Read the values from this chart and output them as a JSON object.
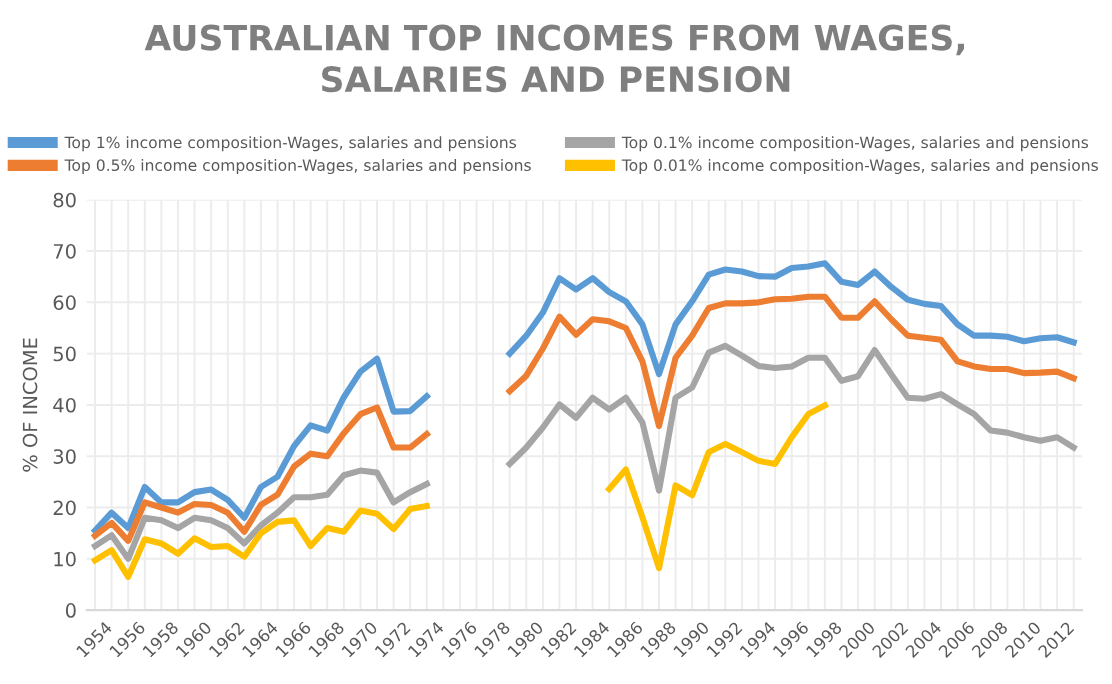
{
  "chart_data": {
    "type": "line",
    "title": "AUSTRALIAN TOP INCOMES FROM WAGES,\nSALARIES AND PENSION",
    "ylabel": "% OF INCOME",
    "categories": [
      "1954",
      null,
      "1956",
      null,
      "1958",
      null,
      "1960",
      null,
      "1962",
      null,
      "1964",
      null,
      "1966",
      null,
      "1968",
      null,
      "1970",
      null,
      "1972",
      null,
      "1974",
      null,
      "1976",
      null,
      "1978",
      null,
      "1980",
      null,
      "1982",
      null,
      "1984",
      null,
      "1986",
      null,
      "1988",
      null,
      "1990",
      null,
      "1992",
      null,
      "1994",
      null,
      "1996",
      null,
      "1998",
      null,
      "2000",
      null,
      "2002",
      null,
      "2004",
      null,
      "2006",
      null,
      "2008",
      null,
      "2010",
      null,
      "2012",
      null
    ],
    "series": [
      {
        "name": "Top 1% income composition-Wages, salaries and pensions",
        "color": "#5b9bd5",
        "values": [
          15.5,
          19,
          16,
          24,
          21,
          21,
          23,
          23.5,
          21.5,
          18,
          24,
          26,
          32,
          36,
          35,
          41.5,
          46.5,
          49,
          38.7,
          38.8,
          41.7,
          null,
          null,
          null,
          null,
          50,
          53.5,
          58,
          64.7,
          62.5,
          64.7,
          62,
          60.2,
          55.7,
          46,
          55.7,
          60.2,
          65.4,
          66.4,
          66,
          65.1,
          65,
          66.7,
          67,
          67.6,
          64,
          63.4,
          66,
          63,
          60.5,
          59.7,
          59.3,
          55.7,
          53.5,
          53.5,
          53.3,
          52.4,
          53,
          53.2,
          52.2
        ]
      },
      {
        "name": "Top 0.5% income composition-Wages, salaries and pensions",
        "color": "#ed7d31",
        "values": [
          14.5,
          17,
          13.5,
          21,
          20,
          19,
          20.7,
          20.5,
          19,
          15.3,
          20.5,
          22.5,
          28,
          30.5,
          30,
          34.5,
          38.2,
          39.5,
          31.7,
          31.7,
          34.3,
          null,
          null,
          null,
          null,
          42.7,
          45.7,
          51,
          57.2,
          53.7,
          56.7,
          56.3,
          55,
          48.5,
          35.9,
          49.2,
          53.5,
          58.9,
          59.8,
          59.8,
          60,
          60.6,
          60.7,
          61.1,
          61.1,
          57,
          57,
          60.2,
          56.7,
          53.5,
          53.1,
          52.7,
          48.5,
          47.5,
          47,
          47,
          46.2,
          46.3,
          46.5,
          45.2
        ]
      },
      {
        "name": "Top 0.1% income composition-Wages, salaries and pensions",
        "color": "#a5a5a5",
        "values": [
          12.5,
          14.6,
          10,
          18,
          17.5,
          16,
          18,
          17.5,
          16,
          13,
          16.5,
          19,
          22,
          22,
          22.5,
          26.3,
          27.2,
          26.8,
          21,
          23,
          24.6,
          null,
          null,
          null,
          null,
          28.5,
          31.7,
          35.6,
          40.1,
          37.5,
          41.4,
          39.1,
          41.4,
          36.6,
          23.3,
          41.4,
          43.4,
          50.2,
          51.5,
          49.6,
          47.6,
          47.2,
          47.5,
          49.2,
          49.2,
          44.7,
          45.6,
          50.7,
          46,
          41.4,
          41.2,
          42.1,
          40.1,
          38.2,
          35,
          34.6,
          33.7,
          33,
          33.7,
          31.7
        ]
      },
      {
        "name": "Top 0.01% income composition-Wages, salaries and pensions",
        "color": "#ffc000",
        "values": [
          9.7,
          11.7,
          6.5,
          13.8,
          13,
          11,
          14,
          12.3,
          12.5,
          10.4,
          15,
          17.2,
          17.5,
          12.5,
          16,
          15.3,
          19.4,
          18.8,
          15.8,
          19.7,
          20.3,
          null,
          null,
          null,
          null,
          null,
          null,
          null,
          null,
          null,
          null,
          23.6,
          27.4,
          18.1,
          8.2,
          24.3,
          22.4,
          30.8,
          32.4,
          30.8,
          29.1,
          28.5,
          33.7,
          38.2,
          39.9,
          null,
          null,
          null,
          null,
          null,
          null,
          null,
          null,
          null,
          null,
          null,
          null,
          null,
          null,
          null
        ]
      }
    ],
    "ylim": [
      0,
      80
    ],
    "yticks": [
      0,
      10,
      20,
      30,
      40,
      50,
      60,
      70,
      80
    ],
    "grid": true,
    "legend": "top",
    "marker": "none",
    "line_style": "solid"
  }
}
